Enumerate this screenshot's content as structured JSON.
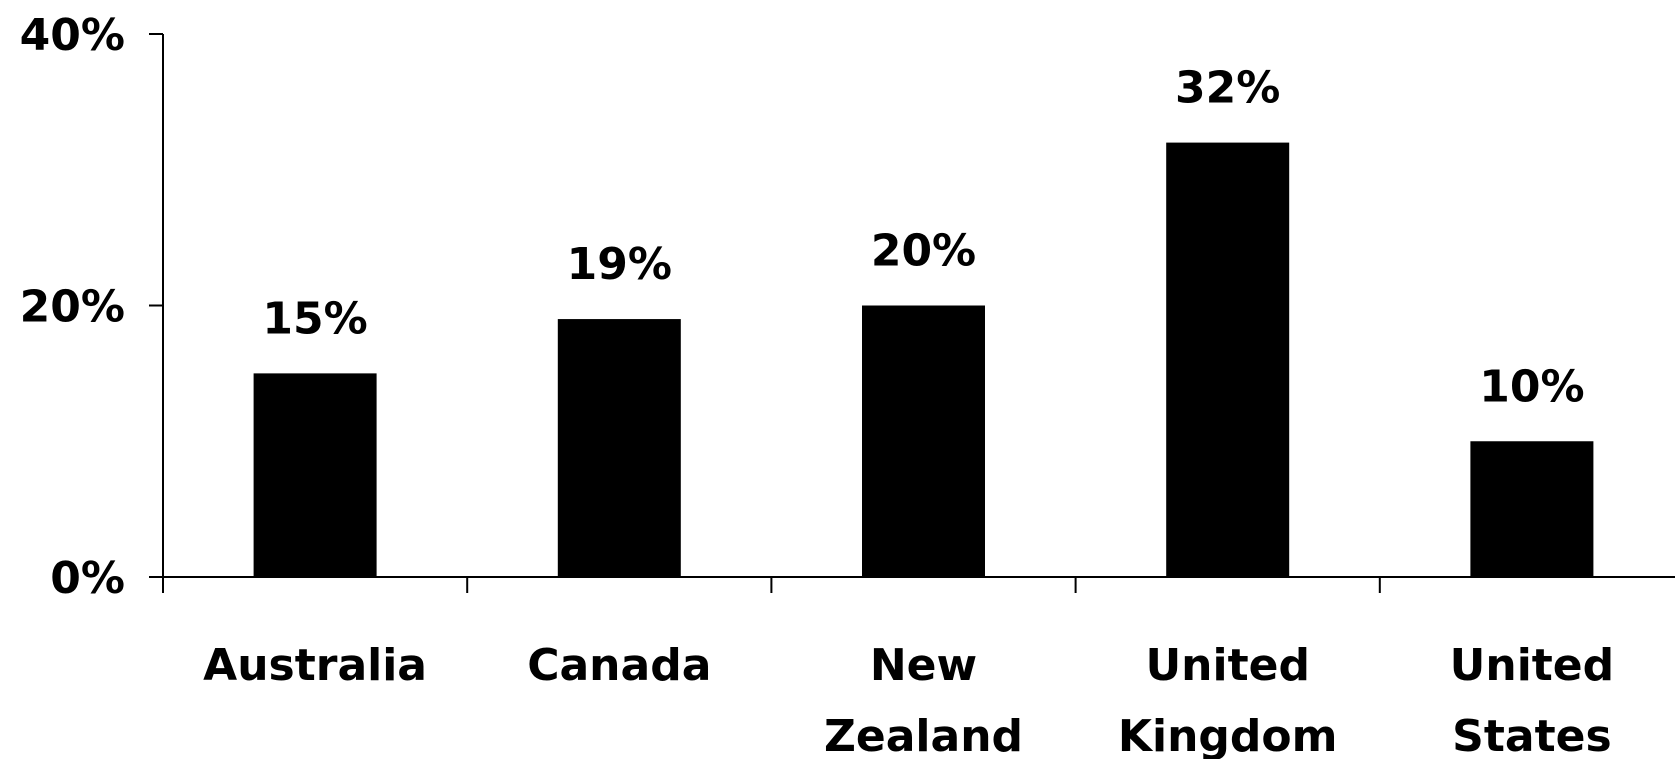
{
  "chart_data": {
    "type": "bar",
    "categories": [
      [
        "Australia"
      ],
      [
        "Canada"
      ],
      [
        "New",
        "Zealand"
      ],
      [
        "United",
        "Kingdom"
      ],
      [
        "United",
        "States"
      ]
    ],
    "values": [
      15,
      19,
      20,
      32,
      10
    ],
    "data_labels": [
      "15%",
      "19%",
      "20%",
      "32%",
      "10%"
    ],
    "ylim": [
      0,
      40
    ],
    "yticks": [
      0,
      20,
      40
    ],
    "ytick_labels": [
      "0%",
      "20%",
      "40%"
    ],
    "grid": false,
    "legend": "none",
    "colors": {
      "bar": "#000000",
      "axis": "#000000",
      "background": "#ffffff"
    }
  }
}
